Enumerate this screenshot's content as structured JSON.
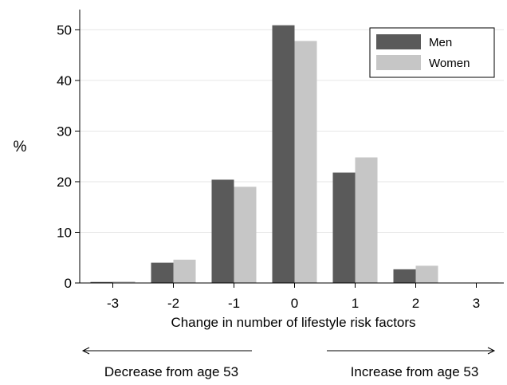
{
  "chart_data": {
    "type": "bar",
    "title": "",
    "xlabel": "Change in number of lifestyle risk factors",
    "ylabel": "%",
    "categories": [
      "-3",
      "-2",
      "-1",
      "0",
      "1",
      "2",
      "3"
    ],
    "series": [
      {
        "name": "Men",
        "color": "#5a5a5a",
        "values": [
          0.2,
          4.0,
          20.4,
          50.9,
          21.8,
          2.7,
          0.0
        ]
      },
      {
        "name": "Women",
        "color": "#c6c6c6",
        "values": [
          0.3,
          4.6,
          19.0,
          47.8,
          24.8,
          3.4,
          0.1
        ]
      }
    ],
    "ylim": [
      0,
      54
    ],
    "yticks": [
      0,
      10,
      20,
      30,
      40,
      50
    ],
    "grid": true,
    "legend_position": "top-right",
    "annotations": {
      "left_arrow_label": "Decrease from age 53",
      "right_arrow_label": "Increase from age 53"
    }
  }
}
